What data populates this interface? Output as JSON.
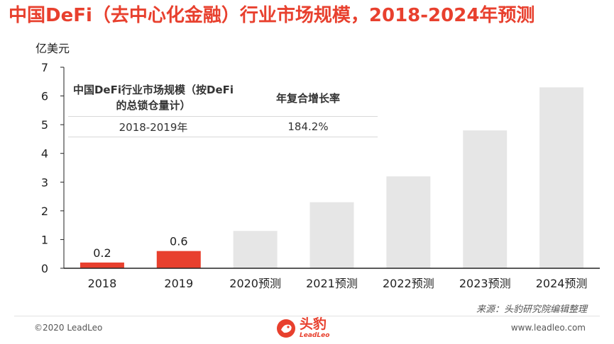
{
  "title": "中国DeFi（去中心化金融）行业市场规模，2018-2024年预测",
  "colors": {
    "title": "#e8402e",
    "highlight_bar": "#e8402e",
    "forecast_bar": "#e6e6e6",
    "axis": "#222222",
    "logo": "#e8402e"
  },
  "unit_label": "亿美元",
  "cagr_table": {
    "header_col1": "中国DeFi行业市场规模（按DeFi的总锁仓量计）",
    "header_col2": "年复合增长率",
    "rows": [
      {
        "period": "2018-2019年",
        "rate": "184.2%"
      }
    ]
  },
  "chart_data": {
    "type": "bar",
    "categories": [
      "2018",
      "2019",
      "2020预测",
      "2021预测",
      "2022预测",
      "2023预测",
      "2024预测"
    ],
    "values": [
      0.2,
      0.6,
      1.3,
      2.3,
      3.2,
      4.8,
      6.3
    ],
    "data_labels": [
      "0.2",
      "0.6",
      "",
      "",
      "",
      "",
      ""
    ],
    "highlighted": [
      true,
      true,
      false,
      false,
      false,
      false,
      false
    ],
    "ylabel": "亿美元",
    "ylim": [
      0,
      7
    ],
    "yticks": [
      0,
      1,
      2,
      3,
      4,
      5,
      6,
      7
    ],
    "grid": false,
    "legend": "none"
  },
  "source_note": "来源：头豹研究院编辑整理",
  "footer": {
    "copyright": "©2020 LeadLeo",
    "website": "www.leadleo.com",
    "logo_cn": "头豹",
    "logo_en": "LeadLeo"
  }
}
